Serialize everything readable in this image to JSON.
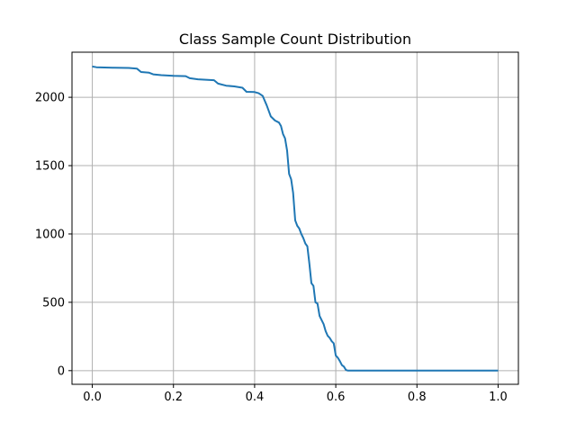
{
  "chart_data": {
    "type": "line",
    "title": "Class Sample Count Distribution",
    "xlabel": "",
    "ylabel": "",
    "xlim": [
      -0.05,
      1.05
    ],
    "ylim": [
      -100,
      2330
    ],
    "xticks": [
      0.0,
      0.2,
      0.4,
      0.6,
      0.8,
      1.0
    ],
    "xtick_labels": [
      "0.0",
      "0.2",
      "0.4",
      "0.6",
      "0.8",
      "1.0"
    ],
    "yticks": [
      0,
      500,
      1000,
      1500,
      2000
    ],
    "ytick_labels": [
      "0",
      "500",
      "1000",
      "1500",
      "2000"
    ],
    "grid": true,
    "color": "#1f77b4",
    "series": [
      {
        "x": [
          0.0,
          0.01,
          0.05,
          0.09,
          0.11,
          0.12,
          0.14,
          0.15,
          0.17,
          0.2,
          0.23,
          0.24,
          0.26,
          0.3,
          0.31,
          0.33,
          0.35,
          0.37,
          0.38,
          0.4,
          0.41,
          0.42,
          0.43,
          0.44,
          0.45,
          0.46,
          0.465,
          0.47,
          0.475,
          0.48,
          0.485,
          0.49,
          0.495,
          0.5,
          0.505,
          0.51,
          0.515,
          0.52,
          0.525,
          0.53,
          0.535,
          0.54,
          0.545,
          0.55,
          0.555,
          0.56,
          0.565,
          0.57,
          0.575,
          0.58,
          0.585,
          0.59,
          0.595,
          0.6,
          0.605,
          0.61,
          0.615,
          0.62,
          0.625,
          0.63,
          0.64,
          0.7,
          0.8,
          0.9,
          1.0
        ],
        "y": [
          2225,
          2220,
          2217,
          2215,
          2210,
          2185,
          2180,
          2168,
          2162,
          2157,
          2155,
          2140,
          2132,
          2125,
          2100,
          2085,
          2080,
          2070,
          2040,
          2038,
          2030,
          2010,
          1940,
          1860,
          1830,
          1815,
          1790,
          1730,
          1700,
          1610,
          1440,
          1400,
          1300,
          1100,
          1060,
          1040,
          1000,
          970,
          930,
          910,
          780,
          640,
          620,
          500,
          490,
          400,
          370,
          340,
          290,
          255,
          240,
          215,
          200,
          110,
          95,
          70,
          40,
          30,
          5,
          0,
          0,
          0,
          0,
          0,
          0
        ]
      }
    ]
  }
}
